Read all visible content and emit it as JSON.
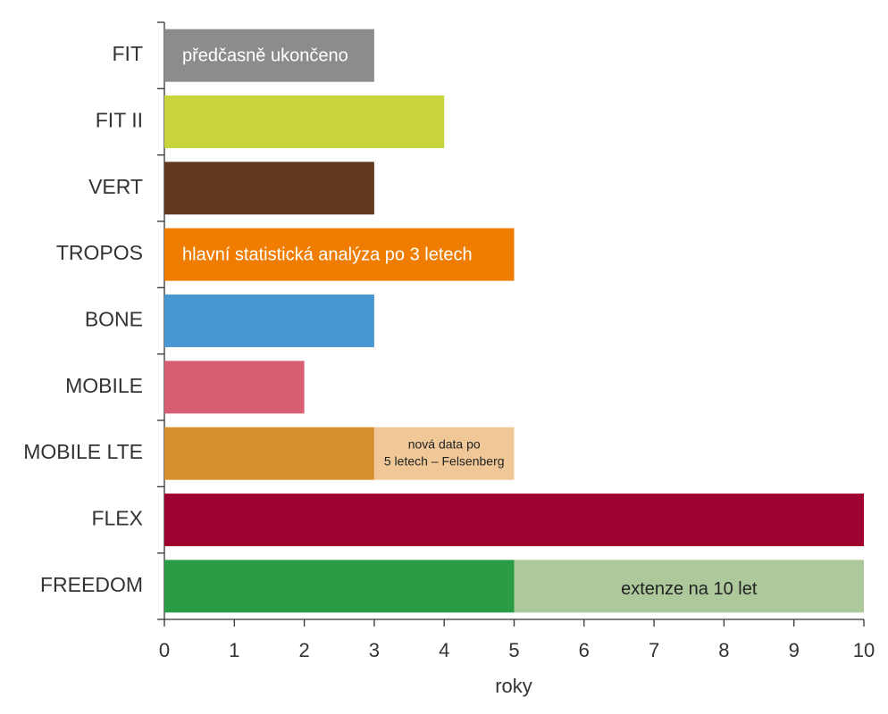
{
  "chart_data": {
    "type": "bar",
    "orientation": "horizontal",
    "xlabel": "roky",
    "categories": [
      "FIT",
      "FIT II",
      "VERT",
      "TROPOS",
      "BONE",
      "MOBILE",
      "MOBILE LTE",
      "FLEX",
      "FREEDOM"
    ],
    "values": [
      3,
      4,
      3,
      5,
      3,
      2,
      3,
      10,
      5
    ],
    "colors": [
      "#8c8c8c",
      "#c8d43c",
      "#623a1e",
      "#f07d00",
      "#4a98d3",
      "#d85f72",
      "#d68f2e",
      "#9e0030",
      "#2a9c46"
    ],
    "bar_labels": [
      "předčasně ukončeno",
      null,
      null,
      "hlavní statistická analýza po 3 letech",
      null,
      null,
      null,
      null,
      null
    ],
    "extension_values": [
      null,
      null,
      null,
      null,
      null,
      null,
      2,
      null,
      5
    ],
    "extension_colors": [
      null,
      null,
      null,
      null,
      null,
      null,
      "#f0c898",
      null,
      "#adc99c"
    ],
    "extension_labels": [
      null,
      null,
      null,
      null,
      null,
      null,
      [
        "nová data po",
        "5 letech – Felsenberg"
      ],
      null,
      [
        "extenze na 10 let"
      ]
    ],
    "xlim": [
      0,
      10
    ],
    "xticks": [
      0,
      1,
      2,
      3,
      4,
      5,
      6,
      7,
      8,
      9,
      10
    ]
  }
}
